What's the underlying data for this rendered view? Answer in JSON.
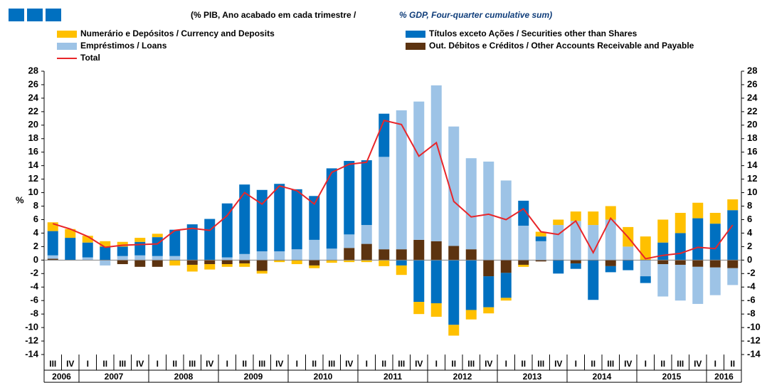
{
  "chart_data": {
    "type": "bar",
    "title_pt": "(% PIB, Ano acabado em cada trimestre  /",
    "title_en": "% GDP, Four-quarter cumulative sum)",
    "y_label": "%",
    "groups": [
      {
        "year": "2006",
        "categories": [
          "III",
          "IV"
        ]
      },
      {
        "year": "2007",
        "categories": [
          "I",
          "II",
          "III",
          "IV"
        ]
      },
      {
        "year": "2008",
        "categories": [
          "I",
          "II",
          "III",
          "IV"
        ]
      },
      {
        "year": "2009",
        "categories": [
          "I",
          "II",
          "III",
          "IV"
        ]
      },
      {
        "year": "2010",
        "categories": [
          "I",
          "II",
          "III",
          "IV"
        ]
      },
      {
        "year": "2011",
        "categories": [
          "I",
          "II",
          "III",
          "IV"
        ]
      },
      {
        "year": "2012",
        "categories": [
          "I",
          "II",
          "III",
          "IV"
        ]
      },
      {
        "year": "2013",
        "categories": [
          "I",
          "II",
          "III",
          "IV"
        ]
      },
      {
        "year": "2014",
        "categories": [
          "I",
          "II",
          "III",
          "IV"
        ]
      },
      {
        "year": "2015",
        "categories": [
          "I",
          "II",
          "III",
          "IV"
        ]
      },
      {
        "year": "2016",
        "categories": [
          "I",
          "II"
        ]
      }
    ],
    "series": [
      {
        "name": "Numerário e Depósitos / Currency and Deposits",
        "color": "#ffc000",
        "values": [
          1.3,
          1.3,
          1.0,
          0.8,
          0.7,
          0.6,
          0.5,
          -0.8,
          -1.0,
          -0.8,
          -0.4,
          -0.5,
          -0.4,
          -0.3,
          -0.6,
          -0.4,
          -0.4,
          -0.3,
          -0.3,
          -0.9,
          -1.4,
          -1.8,
          -2.0,
          -1.6,
          -1.4,
          -0.9,
          -0.4,
          -0.3,
          0.7,
          0.8,
          1.4,
          2.0,
          2.0,
          2.9,
          3.5,
          3.4,
          3.0,
          2.3,
          1.6,
          1.6
        ]
      },
      {
        "name": "Títulos exceto Ações / Securities other than Shares",
        "color": "#0070c0",
        "values": [
          3.6,
          3.3,
          2.2,
          2.0,
          1.4,
          2.0,
          2.8,
          3.9,
          5.3,
          6.1,
          8.0,
          10.3,
          9.1,
          10.0,
          8.9,
          6.5,
          11.9,
          10.9,
          9.6,
          6.4,
          -0.8,
          -6.2,
          -6.4,
          -9.6,
          -7.4,
          -4.6,
          -3.7,
          3.7,
          0.7,
          -2.0,
          -0.8,
          -5.9,
          -0.9,
          -1.5,
          -1.0,
          2.6,
          4.0,
          6.2,
          5.4,
          7.4
        ]
      },
      {
        "name": "Empréstimos / Loans",
        "color": "#9dc3e6",
        "values": [
          0.5,
          0,
          0.4,
          -0.8,
          0.6,
          0.7,
          0.6,
          0.6,
          0,
          0,
          0.4,
          0.9,
          1.3,
          1.3,
          1.6,
          3.0,
          1.7,
          2.0,
          2.8,
          13.7,
          20.6,
          20.5,
          23.1,
          17.7,
          13.5,
          14.6,
          11.8,
          5.1,
          2.8,
          5.2,
          5.8,
          5.2,
          6.0,
          2.0,
          -2.4,
          -4.8,
          -5.3,
          -5.5,
          -4.1,
          -2.5
        ]
      },
      {
        "name": "Out. Débitos e Créditos / Other Accounts Receivable and Payable",
        "color": "#5c3310",
        "values": [
          0.2,
          0,
          0,
          0,
          -0.6,
          -1.0,
          -1.0,
          0,
          -0.7,
          -0.6,
          -0.6,
          -0.5,
          -1.6,
          0,
          0,
          -0.8,
          0,
          1.8,
          2.4,
          1.6,
          1.6,
          3.0,
          2.8,
          2.1,
          1.6,
          -2.4,
          -1.9,
          -0.7,
          -0.2,
          0,
          -0.5,
          0,
          -0.9,
          0,
          0,
          -0.6,
          -0.7,
          -1.0,
          -1.1,
          -1.2
        ]
      }
    ],
    "line_series": {
      "name": "Total",
      "color": "#e8262a",
      "values": [
        5.4,
        4.6,
        3.5,
        1.9,
        2.2,
        2.3,
        2.4,
        4.4,
        4.7,
        4.4,
        6.6,
        10.0,
        8.3,
        11.0,
        10.3,
        8.3,
        13.0,
        14.2,
        14.5,
        20.7,
        20.1,
        15.4,
        17.4,
        8.7,
        6.4,
        6.8,
        6.0,
        7.6,
        4.2,
        3.8,
        5.8,
        1.1,
        6.2,
        3.4,
        0.2,
        0.7,
        1.0,
        1.9,
        1.7,
        5.2
      ]
    },
    "ylim": [
      -14,
      28
    ],
    "yticks": [
      -14,
      -12,
      -10,
      -8,
      -6,
      -4,
      -2,
      0,
      2,
      4,
      6,
      8,
      10,
      12,
      14,
      16,
      18,
      20,
      22,
      24,
      26,
      28
    ]
  }
}
